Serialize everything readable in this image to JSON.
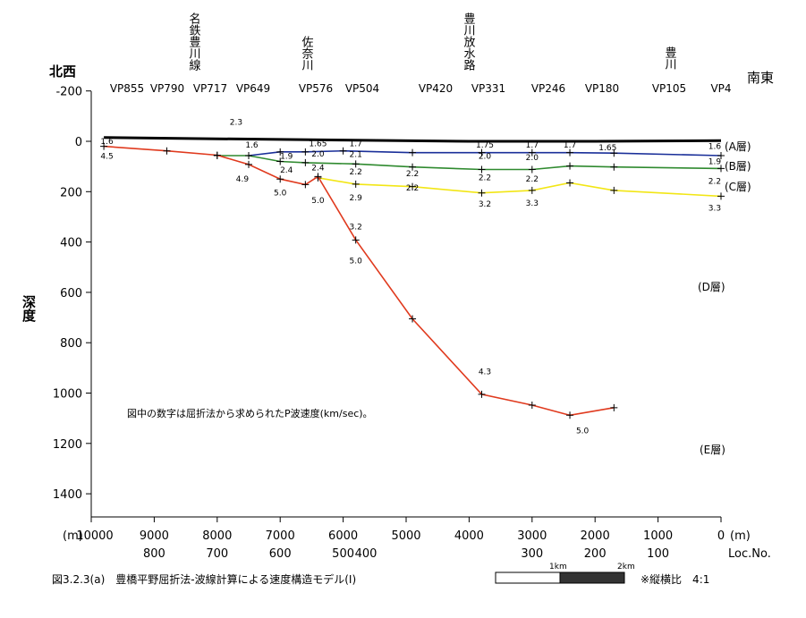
{
  "chart_data": {
    "type": "line",
    "title": "",
    "caption": "図3.2.3(a)　豊橋平野屈折法-波線計算による速度構造モデル(Ⅰ)",
    "ratio_note": "※縦横比　4:1",
    "note": "図中の数字は屈折法から求められたP波速度(km/sec)。",
    "ylabel": "深度",
    "dir_left": "北西",
    "dir_right": "南東",
    "xunit_left": "(m)",
    "xunit_right": "(m)",
    "loc_label": "Loc.No.",
    "xlim": [
      10000,
      0
    ],
    "ylim": [
      -200,
      1500
    ],
    "y_inverted": true,
    "grid": false,
    "y_ticks": [
      "-200",
      "0",
      "200",
      "400",
      "600",
      "800",
      "1000",
      "1200",
      "1400"
    ],
    "x_ticks": [
      "10000",
      "9000",
      "8000",
      "7000",
      "6000",
      "5000",
      "4000",
      "3000",
      "2000",
      "1000",
      "0"
    ],
    "loc_ticks": [
      "800",
      "700",
      "600",
      "500",
      "400",
      "300",
      "200",
      "100"
    ],
    "vp_labels": [
      "VP855",
      "VP790",
      "VP717",
      "VP649",
      "VP576",
      "VP504",
      "VP420",
      "VP331",
      "VP246",
      "VP180",
      "VP105",
      "VP4"
    ],
    "places": [
      "名鉄豊川線",
      "佐奈川",
      "豊川放水路",
      "豊川"
    ],
    "layer_labels": [
      "(A層)",
      "(B層)",
      "(C層)",
      "(D層)",
      "(E層)"
    ],
    "scale_bar": {
      "labels": [
        "1km",
        "2km"
      ]
    },
    "series": [
      {
        "color": "#000000",
        "x": [
          9800,
          8000,
          6000,
          4000,
          2000,
          0
        ],
        "y": [
          -15,
          -10,
          -5,
          0,
          0,
          -3
        ]
      },
      {
        "color": "#1a2f99",
        "x": [
          7500,
          7000,
          6600,
          6000,
          4900,
          3800,
          3000,
          2400,
          1700,
          0
        ],
        "y": [
          57,
          42,
          42,
          38,
          45,
          45,
          45,
          45,
          47,
          57
        ]
      },
      {
        "color": "#2f8a2f",
        "x": [
          8000,
          7500,
          7000,
          6600,
          5800,
          4900,
          3800,
          3000,
          2400,
          1700,
          0
        ],
        "y": [
          57,
          57,
          80,
          85,
          90,
          102,
          112,
          112,
          98,
          102,
          108
        ]
      },
      {
        "color": "#f2e615",
        "x": [
          6400,
          5800,
          4900,
          3800,
          3000,
          2400,
          1700,
          0
        ],
        "y": [
          145,
          170,
          180,
          205,
          195,
          165,
          195,
          218
        ]
      },
      {
        "color": "#e03a1e",
        "x": [
          9800,
          8800,
          8000,
          7500,
          7000,
          6600,
          6400,
          5800,
          4900,
          3800,
          3000,
          2400,
          1700
        ],
        "y": [
          20,
          38,
          55,
          92,
          150,
          172,
          140,
          392,
          705,
          1005,
          1048,
          1088,
          1058
        ]
      }
    ],
    "velocity_labels": [
      {
        "text": "1.6",
        "x": 9750,
        "y": 10
      },
      {
        "text": "4.5",
        "x": 9750,
        "y": 70
      },
      {
        "text": "2.3",
        "x": 7700,
        "y": -65
      },
      {
        "text": "1.6",
        "x": 7450,
        "y": 25
      },
      {
        "text": "4.9",
        "x": 7600,
        "y": 160
      },
      {
        "text": "1.9",
        "x": 6900,
        "y": 70
      },
      {
        "text": "2.4",
        "x": 6900,
        "y": 125
      },
      {
        "text": "5.0",
        "x": 7000,
        "y": 215
      },
      {
        "text": "1.65",
        "x": 6400,
        "y": 20
      },
      {
        "text": "2.0",
        "x": 6400,
        "y": 60
      },
      {
        "text": "2.4",
        "x": 6400,
        "y": 115
      },
      {
        "text": "5.0",
        "x": 6400,
        "y": 245
      },
      {
        "text": "1.7",
        "x": 5800,
        "y": 20
      },
      {
        "text": "2.1",
        "x": 5800,
        "y": 62
      },
      {
        "text": "2.2",
        "x": 5800,
        "y": 132
      },
      {
        "text": "2.9",
        "x": 5800,
        "y": 235
      },
      {
        "text": "3.2",
        "x": 5800,
        "y": 350
      },
      {
        "text": "5.0",
        "x": 5800,
        "y": 485
      },
      {
        "text": "2.2",
        "x": 4900,
        "y": 138
      },
      {
        "text": "2.2",
        "x": 4900,
        "y": 195
      },
      {
        "text": "1.75",
        "x": 3750,
        "y": 25
      },
      {
        "text": "2.0",
        "x": 3750,
        "y": 70
      },
      {
        "text": "2.2",
        "x": 3750,
        "y": 155
      },
      {
        "text": "3.2",
        "x": 3750,
        "y": 260
      },
      {
        "text": "4.3",
        "x": 3750,
        "y": 925
      },
      {
        "text": "1.7",
        "x": 3000,
        "y": 25
      },
      {
        "text": "2.0",
        "x": 3000,
        "y": 75
      },
      {
        "text": "2.2",
        "x": 3000,
        "y": 160
      },
      {
        "text": "3.3",
        "x": 3000,
        "y": 255
      },
      {
        "text": "1.7",
        "x": 2400,
        "y": 25
      },
      {
        "text": "1.65",
        "x": 1800,
        "y": 35
      },
      {
        "text": "5.0",
        "x": 2200,
        "y": 1160
      },
      {
        "text": "1.6",
        "x": 100,
        "y": 30
      },
      {
        "text": "1.9",
        "x": 100,
        "y": 90
      },
      {
        "text": "2.2",
        "x": 100,
        "y": 168
      },
      {
        "text": "3.3",
        "x": 100,
        "y": 275
      }
    ]
  }
}
